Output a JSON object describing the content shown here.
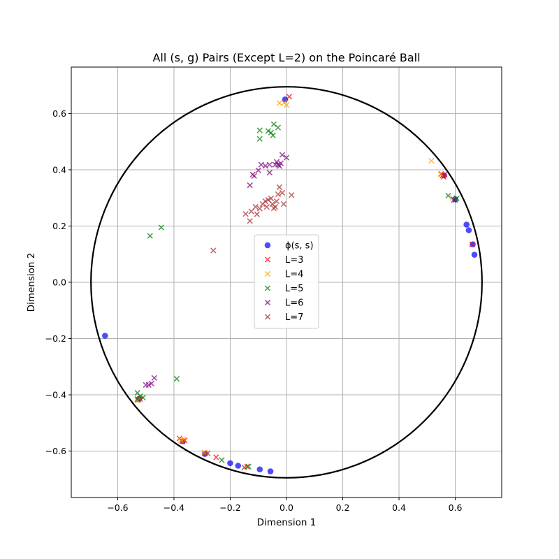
{
  "chart_data": {
    "type": "scatter",
    "title": "All (s, g) Pairs (Except L=2) on the Poincaré Ball",
    "xlabel": "Dimension 1",
    "ylabel": "Dimension 2",
    "xlim": [
      -0.765,
      0.765
    ],
    "ylim": [
      -0.765,
      0.765
    ],
    "xticks": [
      -0.6,
      -0.4,
      -0.2,
      0.0,
      0.2,
      0.4,
      0.6
    ],
    "yticks": [
      -0.6,
      -0.4,
      -0.2,
      0.0,
      0.2,
      0.4,
      0.6
    ],
    "xtick_labels": [
      "−0.6",
      "−0.4",
      "−0.2",
      "0.0",
      "0.2",
      "0.4",
      "0.6"
    ],
    "ytick_labels": [
      "−0.6",
      "−0.4",
      "−0.2",
      "0.0",
      "0.2",
      "0.4",
      "0.6"
    ],
    "grid": true,
    "legend_position": "center",
    "boundary_circle_radius": 0.695,
    "series": [
      {
        "name": "ϕ(s, s)",
        "marker": "circle",
        "color": "#0000ff",
        "points": [
          [
            -0.005,
            0.65
          ],
          [
            0.56,
            0.38
          ],
          [
            0.6,
            0.295
          ],
          [
            0.64,
            0.205
          ],
          [
            0.648,
            0.185
          ],
          [
            0.662,
            0.135
          ],
          [
            0.668,
            0.098
          ],
          [
            -0.645,
            -0.19
          ],
          [
            -0.525,
            -0.415
          ],
          [
            -0.368,
            -0.565
          ],
          [
            -0.29,
            -0.61
          ],
          [
            -0.2,
            -0.643
          ],
          [
            -0.172,
            -0.652
          ],
          [
            -0.095,
            -0.665
          ],
          [
            -0.057,
            -0.672
          ]
        ]
      },
      {
        "name": "L=3",
        "marker": "x",
        "color": "#ff0000",
        "points": [
          [
            0.01,
            0.66
          ],
          [
            0.55,
            0.385
          ],
          [
            0.555,
            0.38
          ],
          [
            0.558,
            0.375
          ],
          [
            0.562,
            0.383
          ],
          [
            0.66,
            0.135
          ],
          [
            -0.527,
            -0.418
          ],
          [
            -0.52,
            -0.415
          ],
          [
            -0.38,
            -0.555
          ],
          [
            -0.37,
            -0.565
          ],
          [
            -0.362,
            -0.562
          ],
          [
            -0.29,
            -0.608
          ],
          [
            -0.25,
            -0.622
          ],
          [
            -0.14,
            -0.655
          ]
        ]
      },
      {
        "name": "L=4",
        "marker": "x",
        "color": "#ffa500",
        "points": [
          [
            -0.025,
            0.637
          ],
          [
            -0.008,
            0.638
          ],
          [
            0.0,
            0.63
          ],
          [
            0.515,
            0.432
          ],
          [
            0.548,
            0.385
          ],
          [
            0.59,
            0.3
          ],
          [
            -0.53,
            -0.42
          ],
          [
            -0.375,
            -0.562
          ],
          [
            -0.365,
            -0.558
          ],
          [
            -0.292,
            -0.605
          ]
        ]
      },
      {
        "name": "L=5",
        "marker": "x",
        "color": "#008000",
        "points": [
          [
            -0.095,
            0.54
          ],
          [
            -0.095,
            0.51
          ],
          [
            -0.065,
            0.538
          ],
          [
            -0.055,
            0.532
          ],
          [
            -0.048,
            0.522
          ],
          [
            -0.045,
            0.562
          ],
          [
            -0.03,
            0.55
          ],
          [
            -0.445,
            0.195
          ],
          [
            -0.485,
            0.165
          ],
          [
            0.575,
            0.308
          ],
          [
            0.605,
            0.298
          ],
          [
            0.6,
            0.293
          ],
          [
            -0.39,
            -0.343
          ],
          [
            -0.53,
            -0.393
          ],
          [
            -0.52,
            -0.405
          ],
          [
            -0.51,
            -0.41
          ],
          [
            -0.53,
            -0.415
          ],
          [
            -0.135,
            -0.655
          ],
          [
            -0.23,
            -0.632
          ]
        ]
      },
      {
        "name": "L=6",
        "marker": "x",
        "color": "#800080",
        "points": [
          [
            -0.12,
            0.383
          ],
          [
            -0.115,
            0.378
          ],
          [
            -0.1,
            0.398
          ],
          [
            -0.09,
            0.418
          ],
          [
            -0.075,
            0.414
          ],
          [
            -0.06,
            0.418
          ],
          [
            -0.06,
            0.39
          ],
          [
            -0.04,
            0.418
          ],
          [
            -0.035,
            0.428
          ],
          [
            -0.03,
            0.418
          ],
          [
            -0.025,
            0.413
          ],
          [
            -0.02,
            0.423
          ],
          [
            -0.015,
            0.453
          ],
          [
            0.0,
            0.443
          ],
          [
            -0.13,
            0.345
          ],
          [
            0.595,
            0.293
          ],
          [
            -0.5,
            -0.365
          ],
          [
            -0.49,
            -0.365
          ],
          [
            -0.48,
            -0.36
          ],
          [
            -0.47,
            -0.34
          ]
        ]
      },
      {
        "name": "L=7",
        "marker": "x",
        "color": "#a52a2a",
        "points": [
          [
            -0.26,
            0.113
          ],
          [
            -0.145,
            0.243
          ],
          [
            -0.13,
            0.218
          ],
          [
            -0.125,
            0.252
          ],
          [
            -0.11,
            0.268
          ],
          [
            -0.105,
            0.242
          ],
          [
            -0.095,
            0.262
          ],
          [
            -0.085,
            0.278
          ],
          [
            -0.075,
            0.288
          ],
          [
            -0.07,
            0.268
          ],
          [
            -0.065,
            0.293
          ],
          [
            -0.055,
            0.298
          ],
          [
            -0.05,
            0.278
          ],
          [
            -0.045,
            0.263
          ],
          [
            -0.04,
            0.268
          ],
          [
            -0.035,
            0.288
          ],
          [
            -0.03,
            0.313
          ],
          [
            -0.025,
            0.338
          ],
          [
            -0.015,
            0.318
          ],
          [
            -0.01,
            0.278
          ],
          [
            0.018,
            0.31
          ],
          [
            -0.28,
            -0.608
          ],
          [
            -0.15,
            -0.658
          ]
        ]
      }
    ]
  }
}
